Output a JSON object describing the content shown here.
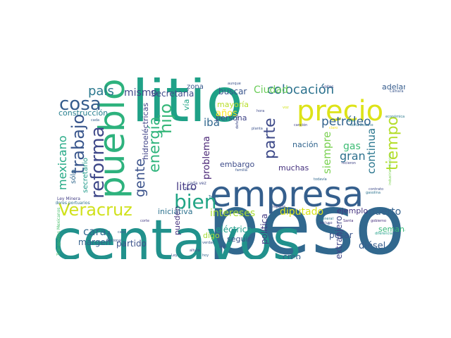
{
  "palette": {
    "yellow": "#e8e419",
    "lime": "#a0da39",
    "green": "#4ac16d",
    "teal": "#1fa187",
    "cyan": "#277f8e",
    "blue": "#365c8d",
    "indigo": "#46327e",
    "purple": "#440154"
  },
  "words": [
    {
      "text": "peso",
      "color": "#31688e"
    },
    {
      "text": "centavos",
      "color": "#21918c"
    },
    {
      "text": "litio",
      "color": "#1fa187"
    },
    {
      "text": "empresa",
      "color": "#355f8d"
    },
    {
      "text": "precio",
      "color": "#dde318"
    },
    {
      "text": "pueblo",
      "color": "#2db27d"
    },
    {
      "text": "Veracruz",
      "color": "#d0e11c"
    },
    {
      "text": "reforma",
      "color": "#3f4889"
    },
    {
      "text": "trabajo",
      "color": "#39568c"
    },
    {
      "text": "cosa",
      "color": "#365d8d"
    },
    {
      "text": "bien",
      "color": "#21a585"
    },
    {
      "text": "país",
      "color": "#2a788e"
    },
    {
      "text": "mismo",
      "color": "#404688"
    },
    {
      "text": "hijo",
      "color": "#35b779"
    },
    {
      "text": "colocación",
      "color": "#2c728e"
    },
    {
      "text": "petróleo",
      "color": "#33638d"
    },
    {
      "text": "tiempo",
      "color": "#b5de2b"
    },
    {
      "text": "gente",
      "color": "#3b528b"
    },
    {
      "text": "energía",
      "color": "#2fb47c"
    },
    {
      "text": "mexicano",
      "color": "#22a884"
    },
    {
      "text": "parte",
      "color": "#3e4a89"
    },
    {
      "text": "gran",
      "color": "#2d708e"
    },
    {
      "text": "continua",
      "color": "#2a768e"
    },
    {
      "text": "gas",
      "color": "#3dbc74"
    },
    {
      "text": "Ciudad",
      "color": "#6ccd5a"
    },
    {
      "text": "siempre",
      "color": "#7ad151"
    },
    {
      "text": "diputado",
      "color": "#d8e219"
    },
    {
      "text": "intereses",
      "color": "#a8db34"
    },
    {
      "text": "puerto",
      "color": "#34618d"
    },
    {
      "text": "litro",
      "color": "#443983"
    },
    {
      "text": "problema",
      "color": "#482475"
    },
    {
      "text": "iba",
      "color": "#31678e"
    },
    {
      "text": "zona",
      "color": "#38588c"
    },
    {
      "text": "buscar",
      "color": "#39558c"
    },
    {
      "text": "Secretaría",
      "color": "#3e4989"
    },
    {
      "text": "construcción",
      "color": "#277f8e"
    },
    {
      "text": "hidroeléctricas",
      "color": "#404387"
    },
    {
      "text": "años",
      "color": "#fde725"
    },
    {
      "text": "mayoría",
      "color": "#b8de29"
    },
    {
      "text": "persona",
      "color": "#404588"
    },
    {
      "text": "nación",
      "color": "#32658e"
    },
    {
      "text": "embargo",
      "color": "#3e4c8a"
    },
    {
      "text": "muchas",
      "color": "#46327e"
    },
    {
      "text": "adelante",
      "color": "#365c8d"
    },
    {
      "text": "iniciativa",
      "color": "#2c728e"
    },
    {
      "text": "ejemplo",
      "color": "#453581"
    },
    {
      "text": "cara",
      "color": "#31688e"
    },
    {
      "text": "margen",
      "color": "#34618d"
    },
    {
      "text": "partido",
      "color": "#3b528b"
    },
    {
      "text": "eléctrica",
      "color": "#1f9e89"
    },
    {
      "text": "diésel",
      "color": "#365d8d"
    },
    {
      "text": "semana",
      "color": "#35b779"
    },
    {
      "text": "pesar",
      "color": "#3a548c"
    },
    {
      "text": "creo",
      "color": "#355e8d"
    },
    {
      "text": "política",
      "color": "#443a83"
    },
    {
      "text": "extranjero",
      "color": "#404688"
    },
    {
      "text": "seguir",
      "color": "#3b528b"
    },
    {
      "text": "pueden",
      "color": "#46337f"
    },
    {
      "text": "digo",
      "color": "#a5db36"
    },
    {
      "text": "sólo",
      "color": "#31688e"
    },
    {
      "text": "secretario",
      "color": "#1f9a8a"
    },
    {
      "text": "vía",
      "color": "#20a386"
    },
    {
      "text": "Ley Minera",
      "color": "#433e85"
    },
    {
      "text": "trabajadores portuarios",
      "color": "#2d708e"
    },
    {
      "text": "Transportes Mexicanos",
      "color": "#4ac16d"
    },
    {
      "text": "Tramo",
      "color": "#3e4989"
    },
    {
      "text": "cada vez",
      "color": "#3f4889"
    },
    {
      "text": "familia",
      "color": "#39558c"
    },
    {
      "text": "planta",
      "color": "#3b528b"
    },
    {
      "text": "todavía",
      "color": "#31688e"
    },
    {
      "text": "contrato",
      "color": "#3e4c8a"
    },
    {
      "text": "gobierno",
      "color": "#46307e"
    },
    {
      "text": "área",
      "color": "#26828e"
    },
    {
      "text": "Santa",
      "color": "#472d7b"
    },
    {
      "text": "doña Rosario",
      "color": "#2c728e"
    },
    {
      "text": "canción",
      "color": "#414487"
    },
    {
      "text": "votos",
      "color": "#3e4c8a"
    },
    {
      "text": "aunque",
      "color": "#3b528b"
    },
    {
      "text": "Cámara",
      "color": "#39568c"
    },
    {
      "text": "hora",
      "color": "#3e4989"
    },
    {
      "text": "Texas",
      "color": "#2d708e"
    },
    {
      "text": "reporte",
      "color": "#3f4788"
    },
    {
      "text": "general",
      "color": "#2a788e"
    },
    {
      "text": "incluso",
      "color": "#433e85"
    },
    {
      "text": "altura",
      "color": "#3e4a89"
    },
    {
      "text": "verdad",
      "color": "#38598c"
    },
    {
      "text": "hoy",
      "color": "#32648e"
    },
    {
      "text": "lado",
      "color": "#3b528b"
    },
    {
      "text": "corte",
      "color": "#443b84"
    },
    {
      "text": "Nacional",
      "color": "#3a548c"
    },
    {
      "text": "industria eléctrica",
      "color": "#7ad151"
    },
    {
      "text": "económica",
      "color": "#2a788e"
    },
    {
      "text": "gasolina",
      "color": "#2c728e"
    },
    {
      "text": "hicieron",
      "color": "#414487"
    },
    {
      "text": "Ley",
      "color": "#3b528b"
    },
    {
      "text": "ir",
      "color": "#34618d"
    },
    {
      "text": "diferencia",
      "color": "#1f9e89"
    },
    {
      "text": "defender",
      "color": "#3e4a89"
    },
    {
      "text": "cabo",
      "color": "#355f8d"
    },
    {
      "text": "lindo",
      "color": "#39568c"
    },
    {
      "text": "voz",
      "color": "#d2e21b"
    },
    {
      "text": "cada",
      "color": "#34618d"
    },
    {
      "text": "claro",
      "color": "#fde725"
    }
  ]
}
